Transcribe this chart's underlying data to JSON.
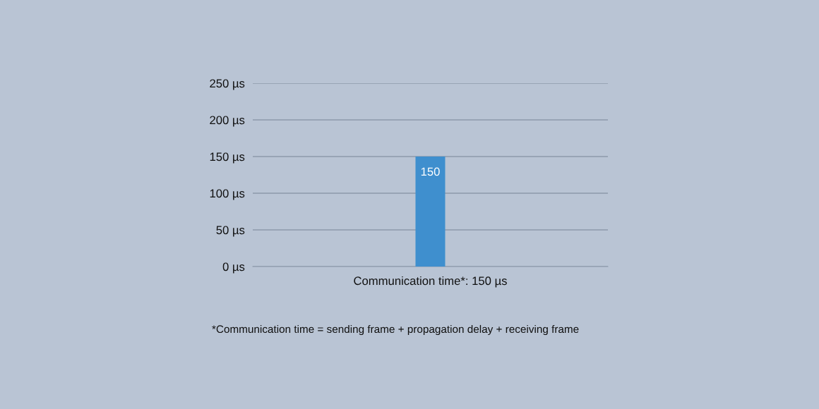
{
  "chart_data": {
    "type": "bar",
    "categories": [
      "Communication time*: 150 µs"
    ],
    "values": [
      150
    ],
    "color": "#3f8fce",
    "data_labels": true,
    "ylim": [
      0,
      250
    ],
    "yticks": [
      {
        "value": 0,
        "label": "0 µs"
      },
      {
        "value": 50,
        "label": "50 µs"
      },
      {
        "value": 100,
        "label": "100 µs"
      },
      {
        "value": 150,
        "label": "150 µs"
      },
      {
        "value": 200,
        "label": "200 µs"
      },
      {
        "value": 250,
        "label": "250 µs"
      }
    ],
    "grid": "y",
    "legend": false,
    "annotations": [
      "*Communication time = sending frame + propagation delay + receiving frame"
    ]
  }
}
